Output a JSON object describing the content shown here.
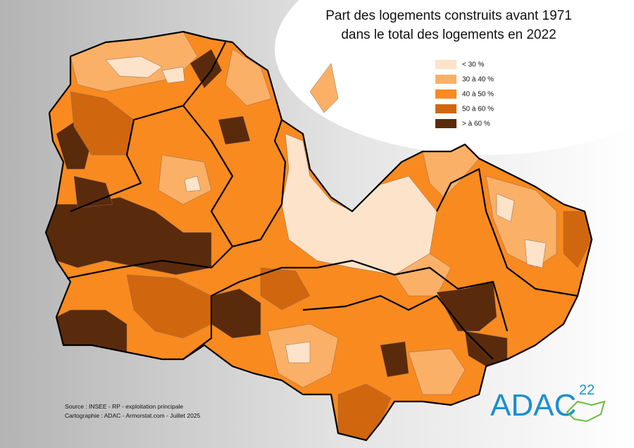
{
  "header": {
    "title": [
      "Part des logements construits avant 1971",
      "dans le total des logements en 2022"
    ]
  },
  "legend": {
    "items": [
      {
        "label": "< 30 %",
        "color": "#fce3c9"
      },
      {
        "label": "30 à 40 %",
        "color": "#fbb067"
      },
      {
        "label": "40 à 50 %",
        "color": "#f98a1f"
      },
      {
        "label": "50 à 60 %",
        "color": "#d0670f"
      },
      {
        "label": "> à 60 %",
        "color": "#5a2a0c"
      }
    ]
  },
  "footer": {
    "source": "Source : INSEE - RP - exploitation principale",
    "credit": "Cartographie : ADAC - Armorstat.com - Juillet 2025"
  },
  "logo": {
    "name": "ADAC",
    "number": "22"
  }
}
